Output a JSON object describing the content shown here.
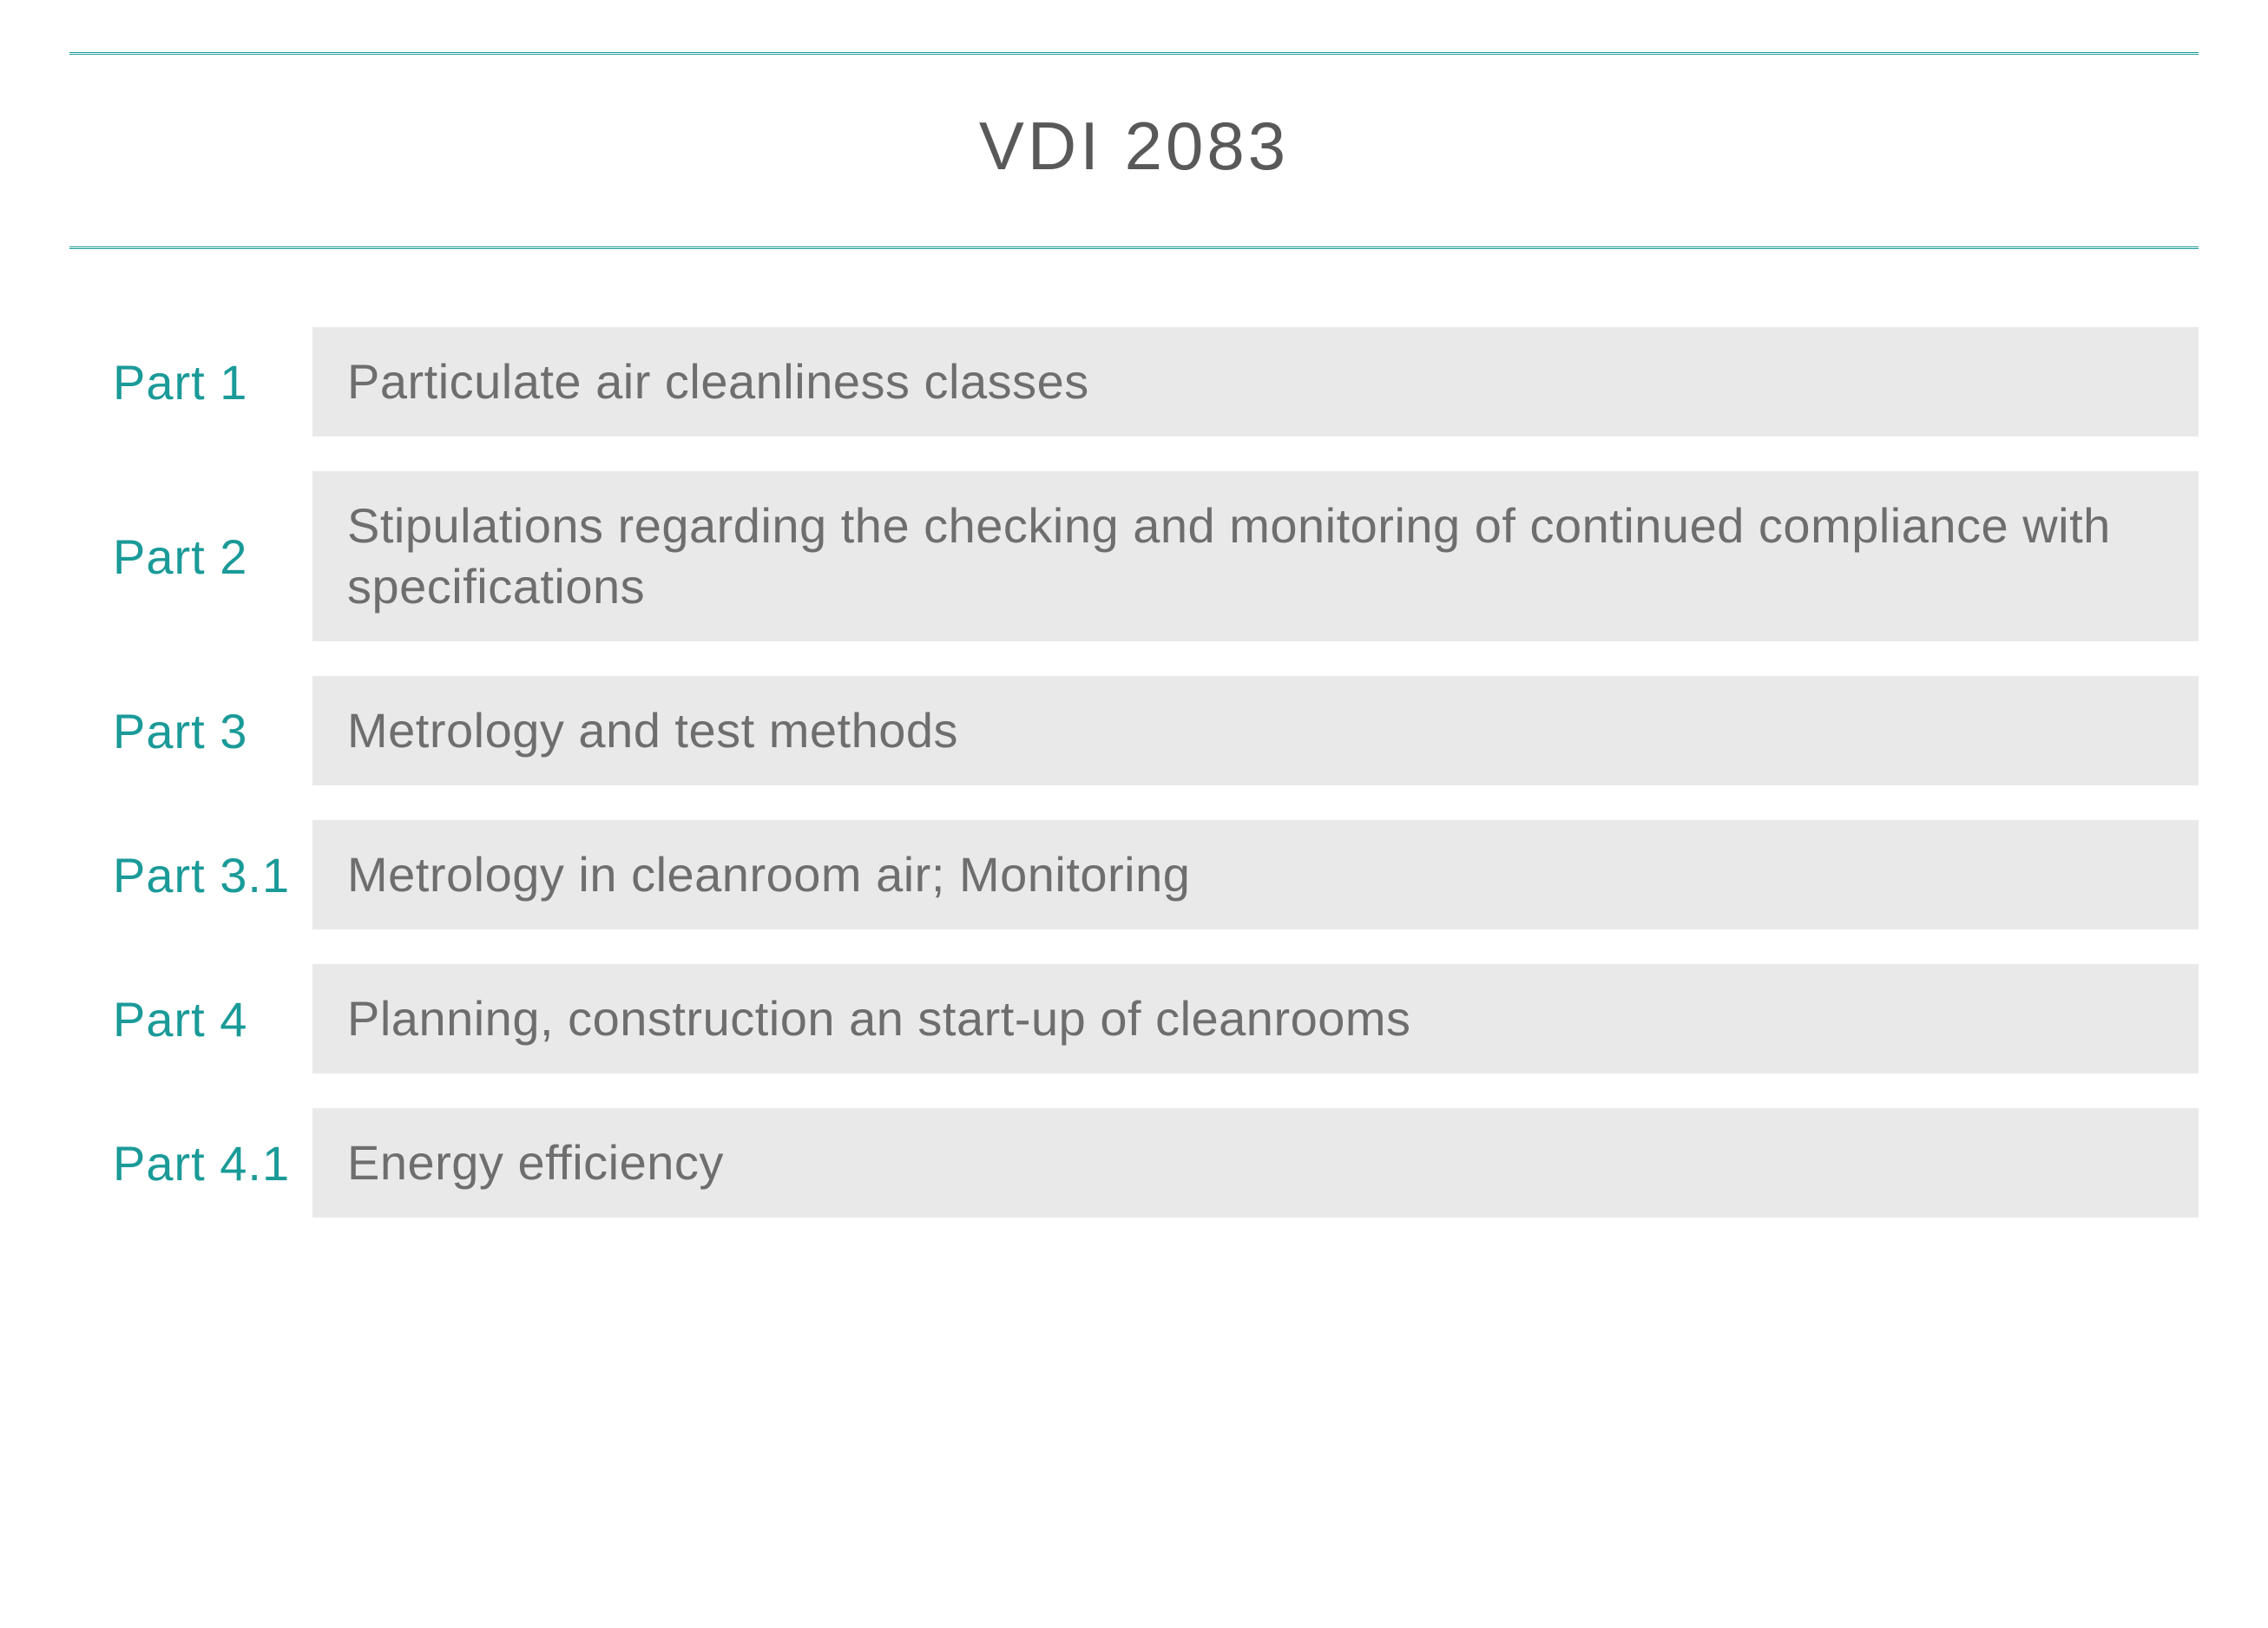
{
  "title": "VDI 2083",
  "colors": {
    "accent": "#1a9a98",
    "ruleColor": "#1a9a98",
    "descBg": "#e9e9e9",
    "descText": "#6e6e6e",
    "background": "#ffffff"
  },
  "typography": {
    "titleFontSize": 78,
    "titleColor": "#595959",
    "labelFontSize": 56,
    "descFontSize": 56
  },
  "rows": [
    {
      "label": "Part 1",
      "desc": "Particulate air cleanliness classes"
    },
    {
      "label": "Part 2",
      "desc": "Stipulations regarding the checking and monitoring of continued compliance with specifications"
    },
    {
      "label": "Part 3",
      "desc": "Metrology and test methods"
    },
    {
      "label": "Part 3.1",
      "desc": "Metrology in cleanroom air; Monitoring"
    },
    {
      "label": "Part 4",
      "desc": "Planning, construction an start-up of cleanrooms"
    },
    {
      "label": "Part 4.1",
      "desc": "Energy efficiency"
    }
  ]
}
